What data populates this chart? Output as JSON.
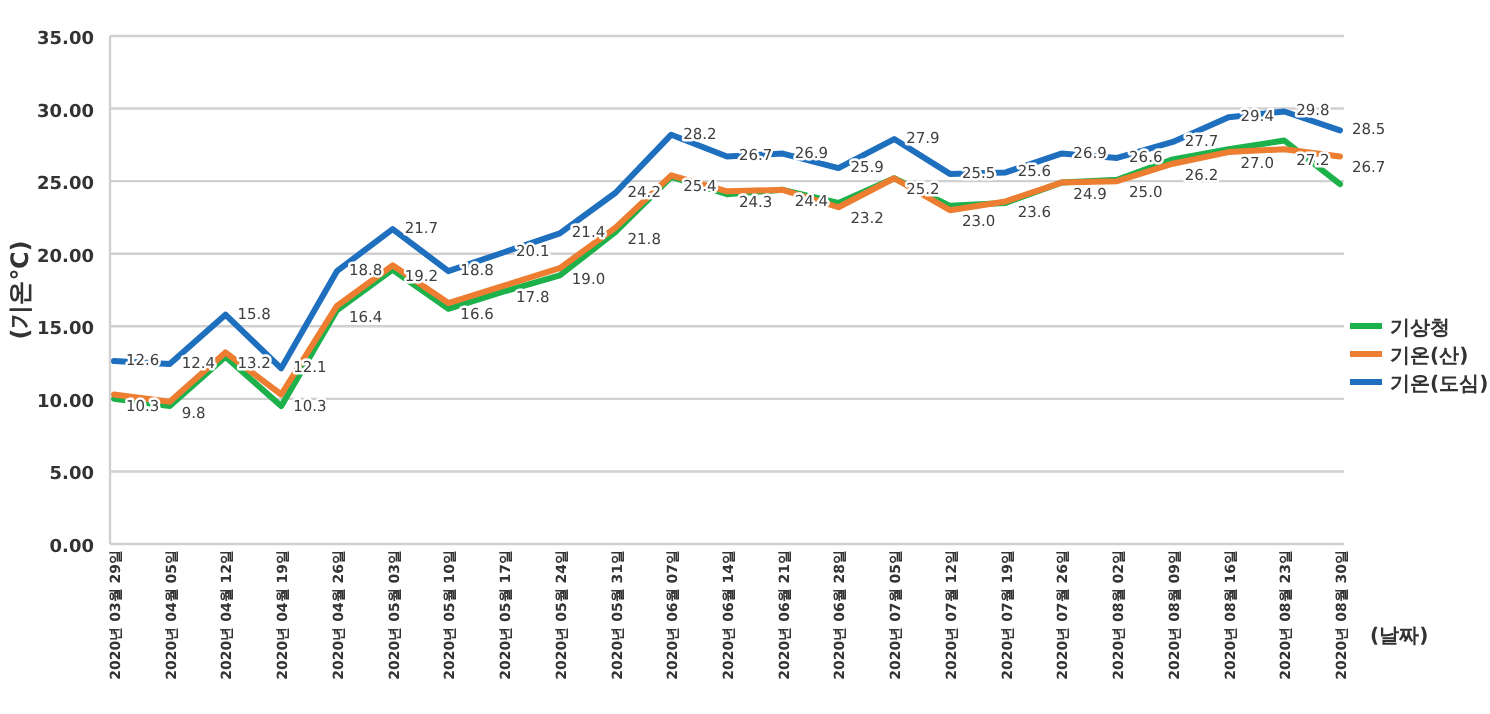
{
  "chart_data": {
    "type": "line",
    "ylabel": "(기온℃)",
    "xlabel": "(날짜)",
    "categories": [
      "2020년 03월 29일",
      "2020년 04월 05일",
      "2020년 04월 12일",
      "2020년 04월 19일",
      "2020년 04월 26일",
      "2020년 05월 03일",
      "2020년 05월 10일",
      "2020년 05월 17일",
      "2020년 05월 24일",
      "2020년 05월 31일",
      "2020년 06월 07일",
      "2020년 06월 14일",
      "2020년 06월 21일",
      "2020년 06월 28일",
      "2020년 07월 05일",
      "2020년 07월 12일",
      "2020년 07월 19일",
      "2020년 07월 26일",
      "2020년 08월 02일",
      "2020년 08월 09일",
      "2020년 08월 16일",
      "2020년 08월 23일",
      "2020년 08월 30일"
    ],
    "series": [
      {
        "name": "기상청",
        "color": "#1db14b",
        "values": [
          10.0,
          9.5,
          12.9,
          9.5,
          16.1,
          18.9,
          16.2,
          17.4,
          18.5,
          21.5,
          25.3,
          24.1,
          24.4,
          23.5,
          25.2,
          23.3,
          23.5,
          24.9,
          25.1,
          26.5,
          27.2,
          27.8,
          24.8
        ]
      },
      {
        "name": "기온(산)",
        "color": "#ed7d31",
        "values": [
          10.3,
          9.8,
          13.2,
          10.3,
          16.4,
          19.2,
          16.6,
          17.8,
          19.0,
          21.8,
          25.4,
          24.3,
          24.4,
          23.2,
          25.2,
          23.0,
          23.6,
          24.9,
          25.0,
          26.2,
          27.0,
          27.2,
          26.7
        ],
        "value_labels": [
          "10.3",
          "9.8",
          "13.2",
          "10.3",
          "16.4",
          "19.2",
          "16.6",
          "17.8",
          "19.0",
          "21.8",
          "25.4",
          "24.3",
          "24.4",
          "23.2",
          "25.2",
          "23.0",
          "23.6",
          "24.9",
          "25.0",
          "26.2",
          "27.0",
          "27.2",
          "26.7"
        ]
      },
      {
        "name": "기온(도심)",
        "color": "#1f6fbf",
        "values": [
          12.6,
          12.4,
          15.8,
          12.1,
          18.8,
          21.7,
          18.8,
          20.1,
          21.4,
          24.2,
          28.2,
          26.7,
          26.9,
          25.9,
          27.9,
          25.5,
          25.6,
          26.9,
          26.6,
          27.7,
          29.4,
          29.8,
          28.5
        ],
        "value_labels": [
          "12.6",
          "12.4",
          "15.8",
          "12.1",
          "18.8",
          "21.7",
          "18.8",
          "20.1",
          "21.4",
          "24.2",
          "28.2",
          "26.7",
          "26.9",
          "25.9",
          "27.9",
          "25.5",
          "25.6",
          "26.9",
          "26.6",
          "27.7",
          "29.4",
          "29.8",
          "28.5"
        ]
      }
    ],
    "ylim": [
      0,
      35
    ],
    "yticks": [
      {
        "value": 0,
        "label": "0.00"
      },
      {
        "value": 5,
        "label": "5.00"
      },
      {
        "value": 10,
        "label": "10.00"
      },
      {
        "value": 15,
        "label": "15.00"
      },
      {
        "value": 20,
        "label": "20.00"
      },
      {
        "value": 25,
        "label": "25.00"
      },
      {
        "value": 30,
        "label": "30.00"
      },
      {
        "value": 35,
        "label": "35.00"
      }
    ],
    "grid": "y",
    "legend": "right",
    "marker": "none",
    "line_style": "solid"
  }
}
